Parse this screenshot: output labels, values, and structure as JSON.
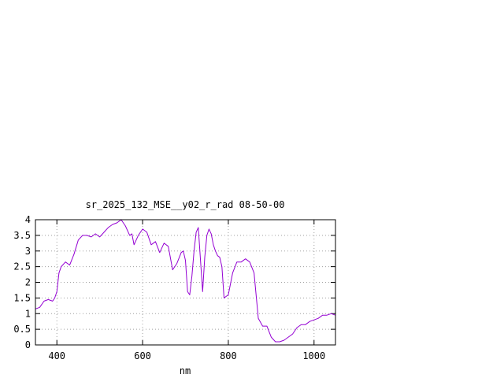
{
  "chart_data": {
    "type": "line",
    "title": "sr_2025_132_MSE__y02_r_rad 08-50-00",
    "xlabel": "nm",
    "ylabel": "",
    "xlim": [
      350,
      1050
    ],
    "ylim": [
      0,
      4
    ],
    "grid": true,
    "x_ticks": [
      400,
      600,
      800,
      1000
    ],
    "y_ticks": [
      0,
      0.5,
      1,
      1.5,
      2,
      2.5,
      3,
      3.5,
      4
    ],
    "x_tick_labels": [
      "400",
      "600",
      "800",
      "1000"
    ],
    "y_tick_labels": [
      "0",
      "0.5",
      "1",
      "1.5",
      "2",
      "2.5",
      "3",
      "3.5",
      "4"
    ],
    "series": [
      {
        "color": "#9400d3",
        "x": [
          350,
          360,
          370,
          380,
          390,
          395,
          400,
          405,
          410,
          420,
          430,
          440,
          450,
          460,
          470,
          480,
          490,
          500,
          510,
          520,
          530,
          540,
          550,
          560,
          570,
          575,
          580,
          590,
          600,
          610,
          620,
          630,
          640,
          650,
          660,
          670,
          680,
          690,
          695,
          700,
          705,
          710,
          715,
          720,
          725,
          730,
          740,
          745,
          750,
          755,
          760,
          765,
          770,
          775,
          780,
          785,
          790,
          800,
          810,
          820,
          830,
          840,
          850,
          860,
          870,
          880,
          890,
          900,
          910,
          920,
          930,
          940,
          950,
          960,
          970,
          980,
          990,
          1000,
          1010,
          1020,
          1030,
          1040,
          1050
        ],
        "y": [
          1.15,
          1.2,
          1.4,
          1.45,
          1.4,
          1.5,
          1.7,
          2.3,
          2.5,
          2.65,
          2.55,
          2.9,
          3.35,
          3.5,
          3.5,
          3.45,
          3.55,
          3.45,
          3.6,
          3.75,
          3.85,
          3.9,
          4.0,
          3.8,
          3.5,
          3.55,
          3.2,
          3.5,
          3.7,
          3.6,
          3.2,
          3.3,
          2.95,
          3.25,
          3.15,
          2.4,
          2.6,
          2.95,
          3.0,
          2.7,
          1.7,
          1.6,
          2.2,
          3.0,
          3.6,
          3.75,
          1.7,
          2.8,
          3.5,
          3.7,
          3.55,
          3.2,
          3.0,
          2.85,
          2.8,
          2.5,
          1.5,
          1.6,
          2.3,
          2.65,
          2.65,
          2.75,
          2.65,
          2.3,
          0.85,
          0.6,
          0.6,
          0.25,
          0.1,
          0.1,
          0.15,
          0.25,
          0.35,
          0.55,
          0.65,
          0.65,
          0.75,
          0.8,
          0.85,
          0.95,
          0.95,
          1.0,
          0.95
        ]
      }
    ]
  }
}
